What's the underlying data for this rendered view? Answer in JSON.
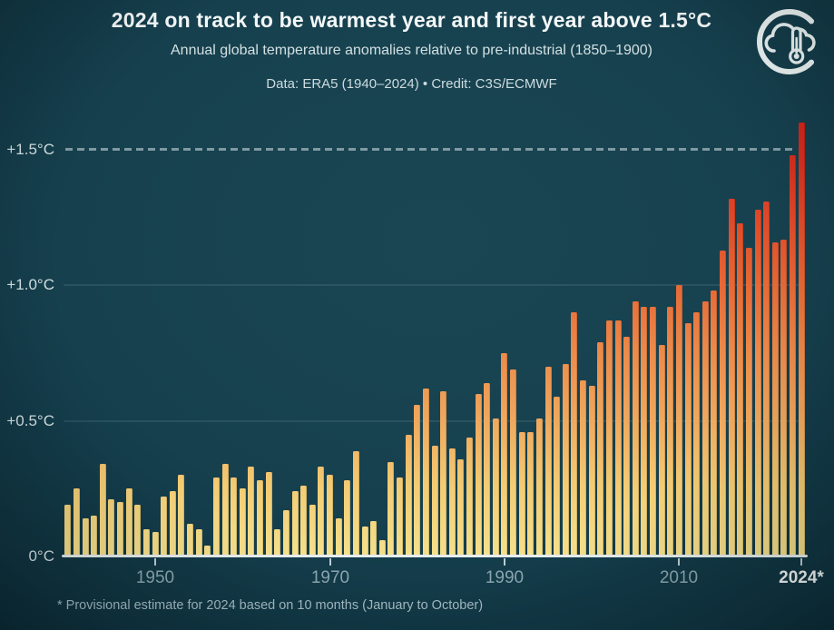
{
  "header": {
    "title": "2024 on track to be warmest year and first year above 1.5°C",
    "subtitle": "Annual global temperature anomalies relative to pre-industrial (1850–1900)",
    "credit": "Data: ERA5 (1940–2024) • Credit: C3S/ECMWF",
    "logo_icon": "cloud-thermometer-crescent-logo"
  },
  "footnote": "* Provisional estimate for 2024 based on 10 months (January to October)",
  "colors": {
    "background": "#16404e",
    "background_edge": "#0d2f3b",
    "title_text": "#f4f8f8",
    "subtitle_text": "#d2e0e2",
    "credit_text": "#cddcdf",
    "ylabel_text": "#d3e2e4",
    "xlabel_text": "#8ba6b0",
    "xlabel_final_text": "#f2f7f7",
    "footnote_text": "#a3bcc4",
    "axis_line": "#e6eeee",
    "dashed_reference_line": "#92aab3",
    "gridline": "rgba(220,235,240,0.10)",
    "bar_gradient_bottom": "#f5e08c",
    "bar_gradient_mid": "#efa95e",
    "bar_gradient_top": "#d02418"
  },
  "chart_data": {
    "type": "bar",
    "title": "2024 on track to be warmest year and first year above 1.5°C",
    "unit": "°C above 1850–1900",
    "years_start": 1940,
    "years_end": 2024,
    "values": [
      0.19,
      0.25,
      0.14,
      0.15,
      0.34,
      0.21,
      0.2,
      0.25,
      0.19,
      0.1,
      0.09,
      0.22,
      0.24,
      0.3,
      0.12,
      0.1,
      0.04,
      0.29,
      0.34,
      0.29,
      0.25,
      0.33,
      0.28,
      0.31,
      0.1,
      0.17,
      0.24,
      0.26,
      0.19,
      0.33,
      0.3,
      0.14,
      0.28,
      0.39,
      0.11,
      0.13,
      0.06,
      0.35,
      0.29,
      0.45,
      0.56,
      0.62,
      0.41,
      0.61,
      0.4,
      0.36,
      0.44,
      0.6,
      0.64,
      0.51,
      0.75,
      0.69,
      0.46,
      0.46,
      0.51,
      0.7,
      0.59,
      0.71,
      0.9,
      0.65,
      0.63,
      0.79,
      0.87,
      0.87,
      0.81,
      0.94,
      0.92,
      0.92,
      0.78,
      0.92,
      1.0,
      0.86,
      0.9,
      0.94,
      0.98,
      1.13,
      1.32,
      1.23,
      1.14,
      1.28,
      1.31,
      1.16,
      1.17,
      1.48,
      1.6
    ],
    "ylim": [
      0,
      1.62
    ],
    "yticks": [
      0,
      0.5,
      1.0,
      1.5
    ],
    "ytick_labels": [
      "0°C",
      "+0.5°C",
      "+1.0°C",
      "+1.5°C"
    ],
    "xticks": [
      1950,
      1970,
      1990,
      2010,
      2024
    ],
    "xtick_labels": [
      "1950",
      "1970",
      "1990",
      "2010",
      "2024*"
    ],
    "reference_line": {
      "value": 1.5,
      "style": "dashed",
      "label": "+1.5°C"
    },
    "gridlines_at": [
      0.5,
      1.0
    ],
    "legend_position": "none",
    "last_bar_provisional": true
  }
}
